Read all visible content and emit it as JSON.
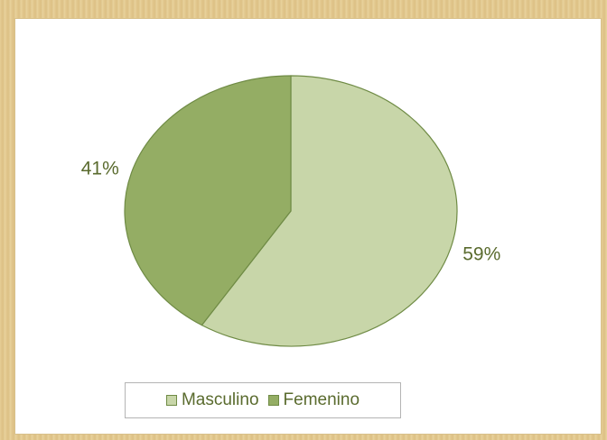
{
  "chart_data": {
    "type": "pie",
    "title": "",
    "slices": [
      {
        "label": "Masculino",
        "value": 59,
        "display": "59%",
        "color": "#c8d6a9"
      },
      {
        "label": "Femenino",
        "value": 41,
        "display": "41%",
        "color": "#94ad64"
      }
    ],
    "legend": {
      "position": "bottom"
    }
  }
}
